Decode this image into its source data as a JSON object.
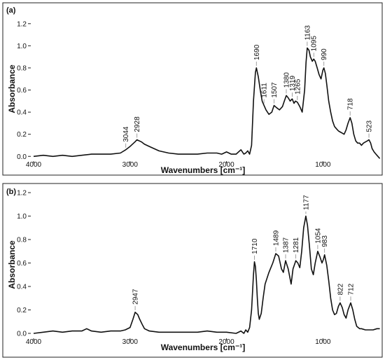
{
  "chart_data": [
    {
      "type": "line",
      "panel_label": "(a)",
      "xlabel": "Wavenumbers [cm⁻¹]",
      "ylabel": "Absorbance",
      "xlim": [
        4000,
        400
      ],
      "ylim": [
        -0.03,
        1.3
      ],
      "x_ticks": [
        4000,
        3000,
        2000,
        1000
      ],
      "y_ticks": [
        0.0,
        0.2,
        0.4,
        0.6,
        0.8,
        1.0,
        1.2
      ],
      "y_tick_labels": [
        "0.0",
        "0.2",
        "0.4",
        "0.6",
        "0.8",
        "1.0",
        "1.2"
      ],
      "series": [
        {
          "x": [
            4000,
            3900,
            3800,
            3700,
            3600,
            3500,
            3400,
            3300,
            3200,
            3100,
            3044,
            3000,
            2950,
            2928,
            2880,
            2850,
            2800,
            2700,
            2600,
            2500,
            2400,
            2300,
            2200,
            2100,
            2050,
            2000,
            1950,
            1900,
            1850,
            1820,
            1800,
            1780,
            1760,
            1740,
            1720,
            1700,
            1690,
            1670,
            1650,
            1630,
            1611,
            1590,
            1560,
            1530,
            1507,
            1480,
            1450,
            1420,
            1400,
            1380,
            1360,
            1340,
            1319,
            1300,
            1285,
            1265,
            1240,
            1215,
            1190,
            1175,
            1163,
            1145,
            1130,
            1110,
            1095,
            1080,
            1060,
            1040,
            1020,
            1000,
            990,
            975,
            960,
            940,
            920,
            900,
            880,
            860,
            840,
            820,
            800,
            780,
            760,
            740,
            718,
            700,
            680,
            660,
            640,
            620,
            600,
            580,
            560,
            540,
            523,
            505,
            490,
            470,
            450,
            430,
            410
          ],
          "y": [
            0.0,
            0.01,
            0.0,
            0.01,
            0.0,
            0.01,
            0.02,
            0.02,
            0.02,
            0.03,
            0.06,
            0.09,
            0.13,
            0.15,
            0.13,
            0.11,
            0.09,
            0.05,
            0.03,
            0.02,
            0.02,
            0.02,
            0.03,
            0.03,
            0.02,
            0.04,
            0.02,
            0.02,
            0.06,
            0.02,
            0.03,
            0.05,
            0.02,
            0.1,
            0.5,
            0.76,
            0.8,
            0.72,
            0.6,
            0.5,
            0.46,
            0.42,
            0.38,
            0.4,
            0.46,
            0.44,
            0.42,
            0.45,
            0.5,
            0.55,
            0.53,
            0.5,
            0.52,
            0.48,
            0.5,
            0.49,
            0.45,
            0.4,
            0.6,
            0.85,
            0.98,
            0.96,
            0.9,
            0.86,
            0.88,
            0.86,
            0.8,
            0.74,
            0.7,
            0.78,
            0.8,
            0.75,
            0.65,
            0.5,
            0.4,
            0.32,
            0.27,
            0.25,
            0.23,
            0.22,
            0.21,
            0.2,
            0.24,
            0.3,
            0.35,
            0.3,
            0.2,
            0.14,
            0.12,
            0.12,
            0.1,
            0.12,
            0.13,
            0.14,
            0.15,
            0.12,
            0.07,
            0.04,
            0.02,
            0.0,
            -0.02
          ]
        }
      ],
      "annotations": [
        {
          "label": "3044",
          "x": 3044
        },
        {
          "label": "2928",
          "x": 2928
        },
        {
          "label": "1690",
          "x": 1690
        },
        {
          "label": "1611",
          "x": 1611
        },
        {
          "label": "1507",
          "x": 1507
        },
        {
          "label": "1380",
          "x": 1380
        },
        {
          "label": "1319",
          "x": 1319
        },
        {
          "label": "1265",
          "x": 1265
        },
        {
          "label": "1163",
          "x": 1163
        },
        {
          "label": "1095",
          "x": 1095
        },
        {
          "label": "990",
          "x": 990
        },
        {
          "label": "718",
          "x": 718
        },
        {
          "label": "523",
          "x": 523
        }
      ]
    },
    {
      "type": "line",
      "panel_label": "(b)",
      "xlabel": "Wavenumbers [cm⁻¹]",
      "ylabel": "Absorbance",
      "xlim": [
        4000,
        400
      ],
      "ylim": [
        -0.03,
        1.23
      ],
      "x_ticks": [
        4000,
        3000,
        2000,
        1000
      ],
      "y_ticks": [
        0.0,
        0.2,
        0.4,
        0.6,
        0.8,
        1.0,
        1.2
      ],
      "y_tick_labels": [
        "0.0",
        "0.2",
        "0.4",
        "0.6",
        "0.8",
        "1.0",
        "1.2"
      ],
      "series": [
        {
          "x": [
            4000,
            3900,
            3800,
            3700,
            3600,
            3500,
            3450,
            3400,
            3300,
            3200,
            3100,
            3050,
            3000,
            2970,
            2947,
            2920,
            2900,
            2870,
            2850,
            2800,
            2700,
            2600,
            2500,
            2400,
            2300,
            2200,
            2100,
            2000,
            1900,
            1850,
            1820,
            1800,
            1780,
            1760,
            1740,
            1720,
            1710,
            1700,
            1690,
            1680,
            1670,
            1660,
            1640,
            1620,
            1600,
            1560,
            1520,
            1489,
            1460,
            1430,
            1410,
            1387,
            1360,
            1330,
            1310,
            1281,
            1260,
            1240,
            1220,
            1200,
            1177,
            1160,
            1140,
            1120,
            1100,
            1080,
            1054,
            1030,
            1010,
            995,
            983,
            960,
            940,
            920,
            900,
            880,
            860,
            840,
            822,
            800,
            780,
            760,
            740,
            712,
            690,
            670,
            650,
            620,
            600,
            560,
            520,
            480,
            440,
            410
          ],
          "y": [
            0.0,
            0.01,
            0.02,
            0.01,
            0.02,
            0.02,
            0.04,
            0.02,
            0.01,
            0.02,
            0.02,
            0.03,
            0.05,
            0.12,
            0.18,
            0.16,
            0.12,
            0.07,
            0.04,
            0.02,
            0.01,
            0.01,
            0.01,
            0.01,
            0.01,
            0.02,
            0.01,
            0.01,
            0.0,
            0.02,
            0.0,
            0.03,
            0.01,
            0.05,
            0.2,
            0.5,
            0.61,
            0.57,
            0.45,
            0.3,
            0.17,
            0.12,
            0.17,
            0.3,
            0.42,
            0.52,
            0.6,
            0.68,
            0.66,
            0.55,
            0.52,
            0.62,
            0.55,
            0.42,
            0.55,
            0.62,
            0.6,
            0.56,
            0.7,
            0.9,
            1.0,
            0.92,
            0.75,
            0.55,
            0.5,
            0.6,
            0.7,
            0.65,
            0.6,
            0.63,
            0.67,
            0.58,
            0.45,
            0.3,
            0.2,
            0.16,
            0.17,
            0.23,
            0.26,
            0.22,
            0.16,
            0.13,
            0.2,
            0.26,
            0.2,
            0.12,
            0.06,
            0.04,
            0.04,
            0.03,
            0.03,
            0.03,
            0.04,
            0.04
          ]
        }
      ],
      "annotations": [
        {
          "label": "2947",
          "x": 2947
        },
        {
          "label": "1710",
          "x": 1710
        },
        {
          "label": "1489",
          "x": 1489
        },
        {
          "label": "1387",
          "x": 1387
        },
        {
          "label": "1281",
          "x": 1281
        },
        {
          "label": "1177",
          "x": 1177
        },
        {
          "label": "1054",
          "x": 1054
        },
        {
          "label": "983",
          "x": 983
        },
        {
          "label": "822",
          "x": 822
        },
        {
          "label": "712",
          "x": 712
        }
      ]
    }
  ]
}
